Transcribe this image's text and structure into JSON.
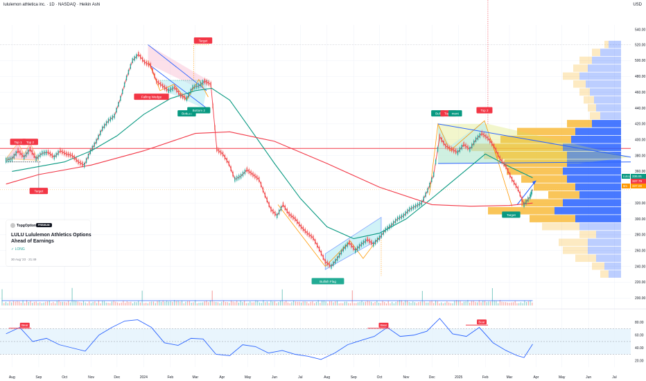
{
  "header": {
    "title": "lululemon athletica inc. · 1D · NASDAQ · Heikin Ashi",
    "currency": "USD"
  },
  "idea_card": {
    "brand": "TopgOptions",
    "badge": "PREMIUM",
    "title": "LULU Lululemon Athletics Options Ahead of Earnings",
    "direction": "✓ LONG",
    "date": "30 Aug '23 · 21:49"
  },
  "price_labels": [
    {
      "text": "LULU",
      "value": "336.91",
      "color": "#089981"
    },
    {
      "text": "",
      "value": "337.79",
      "color": "#f23645"
    },
    {
      "text": "8m",
      "value": "337.00",
      "color": "#ff9800"
    }
  ],
  "annotations": [
    {
      "label": "Top 1",
      "color": "#f23645",
      "date": "2023-08-08",
      "price": 396
    },
    {
      "label": "Top 2",
      "color": "#f23645",
      "date": "2023-08-22",
      "price": 396
    },
    {
      "label": "Target",
      "color": "#f23645",
      "date": "2023-09-01",
      "price": 334
    },
    {
      "label": "Target",
      "color": "#f23645",
      "date": "2024-03-10",
      "price": 524
    },
    {
      "label": "Falling Wedge",
      "color": "#f23645",
      "date": "2024-01-10",
      "price": 453
    },
    {
      "label": "Bottom",
      "color": "#089981",
      "date": "2024-02-20",
      "price": 432
    },
    {
      "label": "Bottom 2",
      "color": "#089981",
      "date": "2024-03-05",
      "price": 436
    },
    {
      "label": "Bullish Flag",
      "color": "#22ab94",
      "date": "2024-08-02",
      "price": 220
    },
    {
      "label": "Bull",
      "color": "#089981",
      "date": "2024-12-08",
      "price": 432
    },
    {
      "label": "Top 1",
      "color": "#f23645",
      "date": "2024-12-20",
      "price": 432
    },
    {
      "label": "ment",
      "color": "#089981",
      "date": "2024-12-28",
      "price": 432
    },
    {
      "label": "Top 2",
      "color": "#f23645",
      "date": "2025-01-31",
      "price": 436
    },
    {
      "label": "Target",
      "color": "#f23645",
      "date": "2025-02-04",
      "price": 613
    },
    {
      "label": "Target",
      "color": "#089981",
      "date": "2025-03-03",
      "price": 304
    }
  ],
  "rsi_labels": [
    {
      "label": "Bear",
      "date": "2023-08-15",
      "value": 75
    },
    {
      "label": "Bear",
      "date": "2024-10-05",
      "value": 75
    },
    {
      "label": "Bear",
      "date": "2025-01-27",
      "value": 80
    }
  ],
  "chart_data": {
    "type": "line",
    "title": "",
    "xlabel": "",
    "ylabel": "",
    "x_ticks": [
      {
        "date": "2023-08-01",
        "label": "Aug"
      },
      {
        "date": "2023-09-01",
        "label": "Sep"
      },
      {
        "date": "2023-10-01",
        "label": "Oct"
      },
      {
        "date": "2023-11-01",
        "label": "Nov"
      },
      {
        "date": "2023-12-01",
        "label": "Dec"
      },
      {
        "date": "2024-01-01",
        "label": "2024"
      },
      {
        "date": "2024-02-01",
        "label": "Feb"
      },
      {
        "date": "2024-03-01",
        "label": "Mar"
      },
      {
        "date": "2024-04-01",
        "label": "Apr"
      },
      {
        "date": "2024-05-01",
        "label": "May"
      },
      {
        "date": "2024-06-01",
        "label": "Jun"
      },
      {
        "date": "2024-07-01",
        "label": "Jul"
      },
      {
        "date": "2024-08-01",
        "label": "Aug"
      },
      {
        "date": "2024-09-01",
        "label": "Sep"
      },
      {
        "date": "2024-10-01",
        "label": "Oct"
      },
      {
        "date": "2024-11-01",
        "label": "Nov"
      },
      {
        "date": "2024-12-01",
        "label": "Dec"
      },
      {
        "date": "2025-01-01",
        "label": "2025"
      },
      {
        "date": "2025-02-01",
        "label": "Feb"
      },
      {
        "date": "2025-03-01",
        "label": "Mar"
      },
      {
        "date": "2025-04-01",
        "label": "Apr"
      },
      {
        "date": "2025-05-01",
        "label": "May"
      },
      {
        "date": "2025-06-01",
        "label": "Jun"
      },
      {
        "date": "2025-07-01",
        "label": "Jul"
      }
    ],
    "price_axis": {
      "ticks": [
        520,
        500,
        480,
        460,
        440,
        420,
        400,
        380,
        360,
        340,
        320,
        300,
        280,
        260,
        240,
        220,
        200
      ],
      "ylim": [
        195,
        545
      ],
      "top_label": "540.00"
    },
    "rsi_axis": {
      "ticks": [
        80,
        60,
        40,
        20
      ],
      "ylim": [
        10,
        90
      ]
    },
    "series": [
      {
        "name": "",
        "color": "#f23645",
        "kind": "price",
        "points": [
          [
            "2023-07-25",
            374
          ],
          [
            "2023-08-01",
            376
          ],
          [
            "2023-08-08",
            386
          ],
          [
            "2023-08-15",
            378
          ],
          [
            "2023-08-22",
            388
          ],
          [
            "2023-08-29",
            376
          ],
          [
            "2023-09-05",
            383
          ],
          [
            "2023-09-12",
            384
          ],
          [
            "2023-09-19",
            378
          ],
          [
            "2023-09-26",
            386
          ],
          [
            "2023-10-03",
            382
          ],
          [
            "2023-10-10",
            380
          ],
          [
            "2023-10-17",
            372
          ],
          [
            "2023-10-24",
            368
          ],
          [
            "2023-10-31",
            385
          ],
          [
            "2023-11-07",
            398
          ],
          [
            "2023-11-14",
            414
          ],
          [
            "2023-11-21",
            424
          ],
          [
            "2023-11-28",
            430
          ],
          [
            "2023-12-05",
            452
          ],
          [
            "2023-12-12",
            478
          ],
          [
            "2023-12-19",
            500
          ],
          [
            "2023-12-26",
            508
          ],
          [
            "2024-01-02",
            498
          ],
          [
            "2024-01-09",
            494
          ],
          [
            "2024-01-16",
            474
          ],
          [
            "2024-01-23",
            468
          ],
          [
            "2024-01-30",
            462
          ],
          [
            "2024-02-06",
            466
          ],
          [
            "2024-02-13",
            456
          ],
          [
            "2024-02-20",
            452
          ],
          [
            "2024-02-27",
            466
          ],
          [
            "2024-03-05",
            468
          ],
          [
            "2024-03-12",
            474
          ],
          [
            "2024-03-19",
            470
          ],
          [
            "2024-03-26",
            388
          ],
          [
            "2024-04-02",
            382
          ],
          [
            "2024-04-09",
            370
          ],
          [
            "2024-04-16",
            350
          ],
          [
            "2024-04-23",
            354
          ],
          [
            "2024-04-30",
            362
          ],
          [
            "2024-05-07",
            356
          ],
          [
            "2024-05-14",
            350
          ],
          [
            "2024-05-21",
            330
          ],
          [
            "2024-05-28",
            312
          ],
          [
            "2024-06-04",
            304
          ],
          [
            "2024-06-11",
            318
          ],
          [
            "2024-06-18",
            306
          ],
          [
            "2024-06-25",
            300
          ],
          [
            "2024-07-02",
            290
          ],
          [
            "2024-07-09",
            282
          ],
          [
            "2024-07-16",
            276
          ],
          [
            "2024-07-23",
            262
          ],
          [
            "2024-07-30",
            246
          ],
          [
            "2024-08-06",
            240
          ],
          [
            "2024-08-13",
            250
          ],
          [
            "2024-08-20",
            262
          ],
          [
            "2024-08-27",
            270
          ],
          [
            "2024-09-03",
            260
          ],
          [
            "2024-09-10",
            268
          ],
          [
            "2024-09-17",
            274
          ],
          [
            "2024-09-24",
            268
          ],
          [
            "2024-10-01",
            276
          ],
          [
            "2024-10-08",
            286
          ],
          [
            "2024-10-15",
            292
          ],
          [
            "2024-10-22",
            300
          ],
          [
            "2024-10-29",
            304
          ],
          [
            "2024-11-05",
            312
          ],
          [
            "2024-11-12",
            316
          ],
          [
            "2024-11-19",
            320
          ],
          [
            "2024-11-26",
            336
          ],
          [
            "2024-12-03",
            356
          ],
          [
            "2024-12-10",
            404
          ],
          [
            "2024-12-17",
            392
          ],
          [
            "2024-12-24",
            388
          ],
          [
            "2024-12-31",
            384
          ],
          [
            "2025-01-07",
            394
          ],
          [
            "2025-01-14",
            388
          ],
          [
            "2025-01-21",
            400
          ],
          [
            "2025-01-28",
            408
          ],
          [
            "2025-02-04",
            402
          ],
          [
            "2025-02-11",
            392
          ],
          [
            "2025-02-18",
            376
          ],
          [
            "2025-02-25",
            366
          ],
          [
            "2025-03-04",
            350
          ],
          [
            "2025-03-11",
            338
          ],
          [
            "2025-03-18",
            318
          ],
          [
            "2025-03-25",
            328
          ],
          [
            "2025-03-28",
            337
          ]
        ]
      },
      {
        "name": "",
        "color": "#089981",
        "kind": "ma",
        "points": [
          [
            "2023-08-01",
            360
          ],
          [
            "2023-10-01",
            372
          ],
          [
            "2023-11-01",
            386
          ],
          [
            "2023-12-01",
            405
          ],
          [
            "2024-01-01",
            432
          ],
          [
            "2024-02-01",
            452
          ],
          [
            "2024-03-01",
            462
          ],
          [
            "2024-03-20",
            465
          ],
          [
            "2024-04-10",
            450
          ],
          [
            "2024-05-01",
            418
          ],
          [
            "2024-06-01",
            370
          ],
          [
            "2024-07-01",
            326
          ],
          [
            "2024-08-01",
            290
          ],
          [
            "2024-09-01",
            275
          ],
          [
            "2024-10-01",
            282
          ],
          [
            "2024-11-01",
            300
          ],
          [
            "2024-12-01",
            326
          ],
          [
            "2025-01-01",
            354
          ],
          [
            "2025-02-01",
            382
          ],
          [
            "2025-03-01",
            366
          ],
          [
            "2025-03-28",
            352
          ]
        ]
      },
      {
        "name": "",
        "color": "#f23645",
        "kind": "ma",
        "points": [
          [
            "2023-07-25",
            344
          ],
          [
            "2023-09-01",
            356
          ],
          [
            "2023-11-01",
            368
          ],
          [
            "2024-01-01",
            386
          ],
          [
            "2024-03-01",
            408
          ],
          [
            "2024-04-10",
            410
          ],
          [
            "2024-06-01",
            398
          ],
          [
            "2024-08-01",
            370
          ],
          [
            "2024-10-01",
            340
          ],
          [
            "2024-12-01",
            318
          ],
          [
            "2025-01-15",
            316
          ],
          [
            "2025-03-01",
            317
          ],
          [
            "2025-03-28",
            320
          ]
        ]
      },
      {
        "name": "RSI",
        "color": "#2962ff",
        "kind": "rsi",
        "points": [
          [
            "2023-07-25",
            62
          ],
          [
            "2023-08-10",
            72
          ],
          [
            "2023-08-25",
            50
          ],
          [
            "2023-09-10",
            55
          ],
          [
            "2023-09-25",
            45
          ],
          [
            "2023-10-10",
            40
          ],
          [
            "2023-10-25",
            35
          ],
          [
            "2023-11-10",
            60
          ],
          [
            "2023-11-25",
            72
          ],
          [
            "2023-12-10",
            82
          ],
          [
            "2023-12-25",
            84
          ],
          [
            "2024-01-10",
            72
          ],
          [
            "2024-01-25",
            48
          ],
          [
            "2024-02-10",
            44
          ],
          [
            "2024-02-25",
            55
          ],
          [
            "2024-03-10",
            54
          ],
          [
            "2024-03-25",
            30
          ],
          [
            "2024-04-10",
            28
          ],
          [
            "2024-04-25",
            45
          ],
          [
            "2024-05-10",
            42
          ],
          [
            "2024-05-25",
            32
          ],
          [
            "2024-06-10",
            36
          ],
          [
            "2024-06-25",
            30
          ],
          [
            "2024-07-10",
            27
          ],
          [
            "2024-07-25",
            22
          ],
          [
            "2024-08-10",
            32
          ],
          [
            "2024-08-25",
            45
          ],
          [
            "2024-09-10",
            52
          ],
          [
            "2024-09-25",
            58
          ],
          [
            "2024-10-10",
            72
          ],
          [
            "2024-10-25",
            58
          ],
          [
            "2024-11-10",
            60
          ],
          [
            "2024-11-25",
            66
          ],
          [
            "2024-12-10",
            86
          ],
          [
            "2024-12-25",
            62
          ],
          [
            "2025-01-10",
            58
          ],
          [
            "2025-01-25",
            72
          ],
          [
            "2025-02-10",
            48
          ],
          [
            "2025-02-25",
            36
          ],
          [
            "2025-03-10",
            28
          ],
          [
            "2025-03-18",
            25
          ],
          [
            "2025-03-28",
            46
          ]
        ]
      }
    ],
    "volume_profile": [
      {
        "price": 520,
        "buy": 2,
        "sell": 6
      },
      {
        "price": 510,
        "buy": 4,
        "sell": 10
      },
      {
        "price": 500,
        "buy": 6,
        "sell": 14
      },
      {
        "price": 490,
        "buy": 7,
        "sell": 16
      },
      {
        "price": 480,
        "buy": 8,
        "sell": 20
      },
      {
        "price": 470,
        "buy": 6,
        "sell": 17
      },
      {
        "price": 460,
        "buy": 5,
        "sell": 15
      },
      {
        "price": 450,
        "buy": 5,
        "sell": 13
      },
      {
        "price": 440,
        "buy": 4,
        "sell": 12
      },
      {
        "price": 430,
        "buy": 5,
        "sell": 10
      },
      {
        "price": 420,
        "buy": 12,
        "sell": 14
      },
      {
        "price": 410,
        "buy": 28,
        "sell": 22
      },
      {
        "price": 400,
        "buy": 34,
        "sell": 24
      },
      {
        "price": 390,
        "buy": 44,
        "sell": 28
      },
      {
        "price": 380,
        "buy": 40,
        "sell": 26
      },
      {
        "price": 370,
        "buy": 30,
        "sell": 26
      },
      {
        "price": 360,
        "buy": 27,
        "sell": 28
      },
      {
        "price": 350,
        "buy": 22,
        "sell": 26
      },
      {
        "price": 340,
        "buy": 20,
        "sell": 22
      },
      {
        "price": 330,
        "buy": 15,
        "sell": 20
      },
      {
        "price": 320,
        "buy": 20,
        "sell": 28
      },
      {
        "price": 310,
        "buy": 32,
        "sell": 32
      },
      {
        "price": 300,
        "buy": 22,
        "sell": 22
      },
      {
        "price": 290,
        "buy": 18,
        "sell": 20
      },
      {
        "price": 280,
        "buy": 8,
        "sell": 12
      },
      {
        "price": 270,
        "buy": 14,
        "sell": 16
      },
      {
        "price": 260,
        "buy": 12,
        "sell": 16
      },
      {
        "price": 250,
        "buy": 10,
        "sell": 12
      },
      {
        "price": 240,
        "buy": 6,
        "sell": 8
      },
      {
        "price": 230,
        "buy": 4,
        "sell": 6
      }
    ]
  }
}
